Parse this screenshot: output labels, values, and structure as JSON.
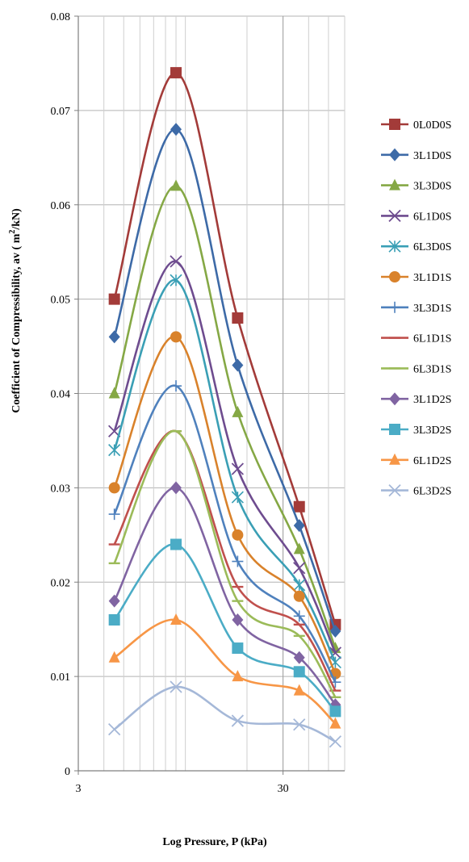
{
  "chart_data": {
    "type": "line",
    "xlabel": "Log Pressure, P (kPa)",
    "ylabel_main": "Coefficient of Compressibility,  av ( m",
    "ylabel_sup": "2",
    "ylabel_tail": "/kN)",
    "x_scale": "log",
    "xlim": [
      3,
      60
    ],
    "ylim": [
      0,
      0.08
    ],
    "x_ticks": [
      3,
      30
    ],
    "x_tick_labels": [
      "3",
      "30"
    ],
    "y_ticks": [
      0,
      0.01,
      0.02,
      0.03,
      0.04,
      0.05,
      0.06,
      0.07,
      0.08
    ],
    "y_tick_labels": [
      "0",
      "0.01",
      "0.02",
      "0.03",
      "0.04",
      "0.05",
      "0.06",
      "0.07",
      "0.08"
    ],
    "grid": true,
    "smooth": true,
    "legend_position": "right",
    "x": [
      4.5,
      9,
      18,
      36,
      54
    ],
    "series": [
      {
        "name": "0L0D0S",
        "color": "#a33b39",
        "marker": "square",
        "values": [
          0.05,
          0.074,
          0.048,
          0.028,
          0.0155
        ]
      },
      {
        "name": "3L1D0S",
        "color": "#3d6aa7",
        "marker": "diamond",
        "values": [
          0.046,
          0.068,
          0.043,
          0.026,
          0.0148
        ]
      },
      {
        "name": "3L3D0S",
        "color": "#85a845",
        "marker": "triangle",
        "values": [
          0.04,
          0.062,
          0.038,
          0.0235,
          0.013
        ]
      },
      {
        "name": "6L1D0S",
        "color": "#6e4c8f",
        "marker": "x",
        "values": [
          0.036,
          0.054,
          0.032,
          0.0215,
          0.0125
        ]
      },
      {
        "name": "6L3D0S",
        "color": "#3a9fb5",
        "marker": "asterisk",
        "values": [
          0.034,
          0.052,
          0.029,
          0.0197,
          0.0115
        ]
      },
      {
        "name": "3L1D1S",
        "color": "#d9822b",
        "marker": "circle",
        "values": [
          0.03,
          0.046,
          0.025,
          0.0185,
          0.0103
        ]
      },
      {
        "name": "3L3D1S",
        "color": "#4f81bd",
        "marker": "plus",
        "values": [
          0.0272,
          0.0408,
          0.0222,
          0.0164,
          0.0094
        ]
      },
      {
        "name": "6L1D1S",
        "color": "#c0504d",
        "marker": "dash",
        "values": [
          0.024,
          0.036,
          0.0195,
          0.0155,
          0.0085
        ]
      },
      {
        "name": "6L3D1S",
        "color": "#9bbb59",
        "marker": "dash",
        "values": [
          0.022,
          0.036,
          0.018,
          0.0143,
          0.0078
        ]
      },
      {
        "name": "3L1D2S",
        "color": "#8064a2",
        "marker": "diamond",
        "values": [
          0.018,
          0.03,
          0.016,
          0.012,
          0.007
        ]
      },
      {
        "name": "3L3D2S",
        "color": "#4bacc6",
        "marker": "square",
        "values": [
          0.016,
          0.024,
          0.013,
          0.0105,
          0.0063
        ]
      },
      {
        "name": "6L1D2S",
        "color": "#f79646",
        "marker": "triangle",
        "values": [
          0.012,
          0.016,
          0.01,
          0.0085,
          0.005
        ]
      },
      {
        "name": "6L3D2S",
        "color": "#a5b8d8",
        "marker": "x",
        "values": [
          0.0044,
          0.0089,
          0.0053,
          0.0049,
          0.0031
        ]
      }
    ]
  }
}
